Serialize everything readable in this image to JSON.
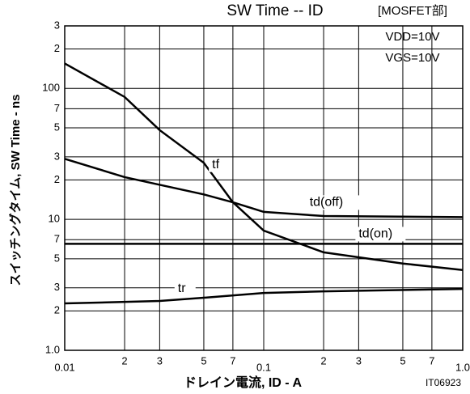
{
  "chart_data": {
    "type": "line",
    "title": "SW Time -- ID",
    "subtitle": "[MOSFET部]",
    "x_label": "ドレイン電流, ID - A",
    "y_label": "スイッチングタイム, SW Time - ns",
    "annotations": [
      "VDD=10V",
      "VGS=10V"
    ],
    "code": "IT06923",
    "log_x": true,
    "log_y": true,
    "grid": true,
    "xlim": [
      0.01,
      1
    ],
    "ylim": [
      1,
      300
    ],
    "xticks": [
      0.01,
      {
        "value": 0.02,
        "label": "2"
      },
      {
        "value": 0.03,
        "label": "3"
      },
      {
        "value": 0.05,
        "label": "5"
      },
      {
        "value": 0.07,
        "label": "7"
      },
      0.1,
      {
        "value": 0.2,
        "label": "2"
      },
      {
        "value": 0.3,
        "label": "3"
      },
      {
        "value": 0.5,
        "label": "5"
      },
      {
        "value": 0.7,
        "label": "7"
      },
      {
        "value": 1,
        "label": "1.0"
      }
    ],
    "yticks": [
      {
        "value": 1,
        "label": "1.0"
      },
      2,
      3,
      5,
      7,
      10,
      {
        "value": 20,
        "label": "2"
      },
      {
        "value": 30,
        "label": "3"
      },
      {
        "value": 50,
        "label": "5"
      },
      {
        "value": 70,
        "label": "7"
      },
      100,
      {
        "value": 200,
        "label": "2"
      },
      {
        "value": 300,
        "label": "3"
      }
    ],
    "series": [
      {
        "name": "tf",
        "color": "#000000",
        "x": [
          0.01,
          0.02,
          0.03,
          0.05,
          0.07,
          0.1,
          0.2,
          0.5,
          1
        ],
        "values": [
          155,
          86,
          48,
          27,
          13.5,
          8.2,
          5.6,
          4.6,
          4.1
        ]
      },
      {
        "name": "td(off)",
        "color": "#000000",
        "x": [
          0.01,
          0.02,
          0.05,
          0.07,
          0.1,
          0.2,
          1
        ],
        "values": [
          29,
          21,
          15.5,
          13.5,
          11.4,
          10.6,
          10.4
        ]
      },
      {
        "name": "td(on)",
        "color": "#000000",
        "x": [
          0.01,
          1
        ],
        "values": [
          6.5,
          6.5
        ]
      },
      {
        "name": "tr",
        "color": "#000000",
        "x": [
          0.01,
          0.03,
          0.05,
          0.1,
          0.2,
          1
        ],
        "values": [
          2.28,
          2.38,
          2.52,
          2.74,
          2.82,
          2.94
        ]
      }
    ]
  }
}
